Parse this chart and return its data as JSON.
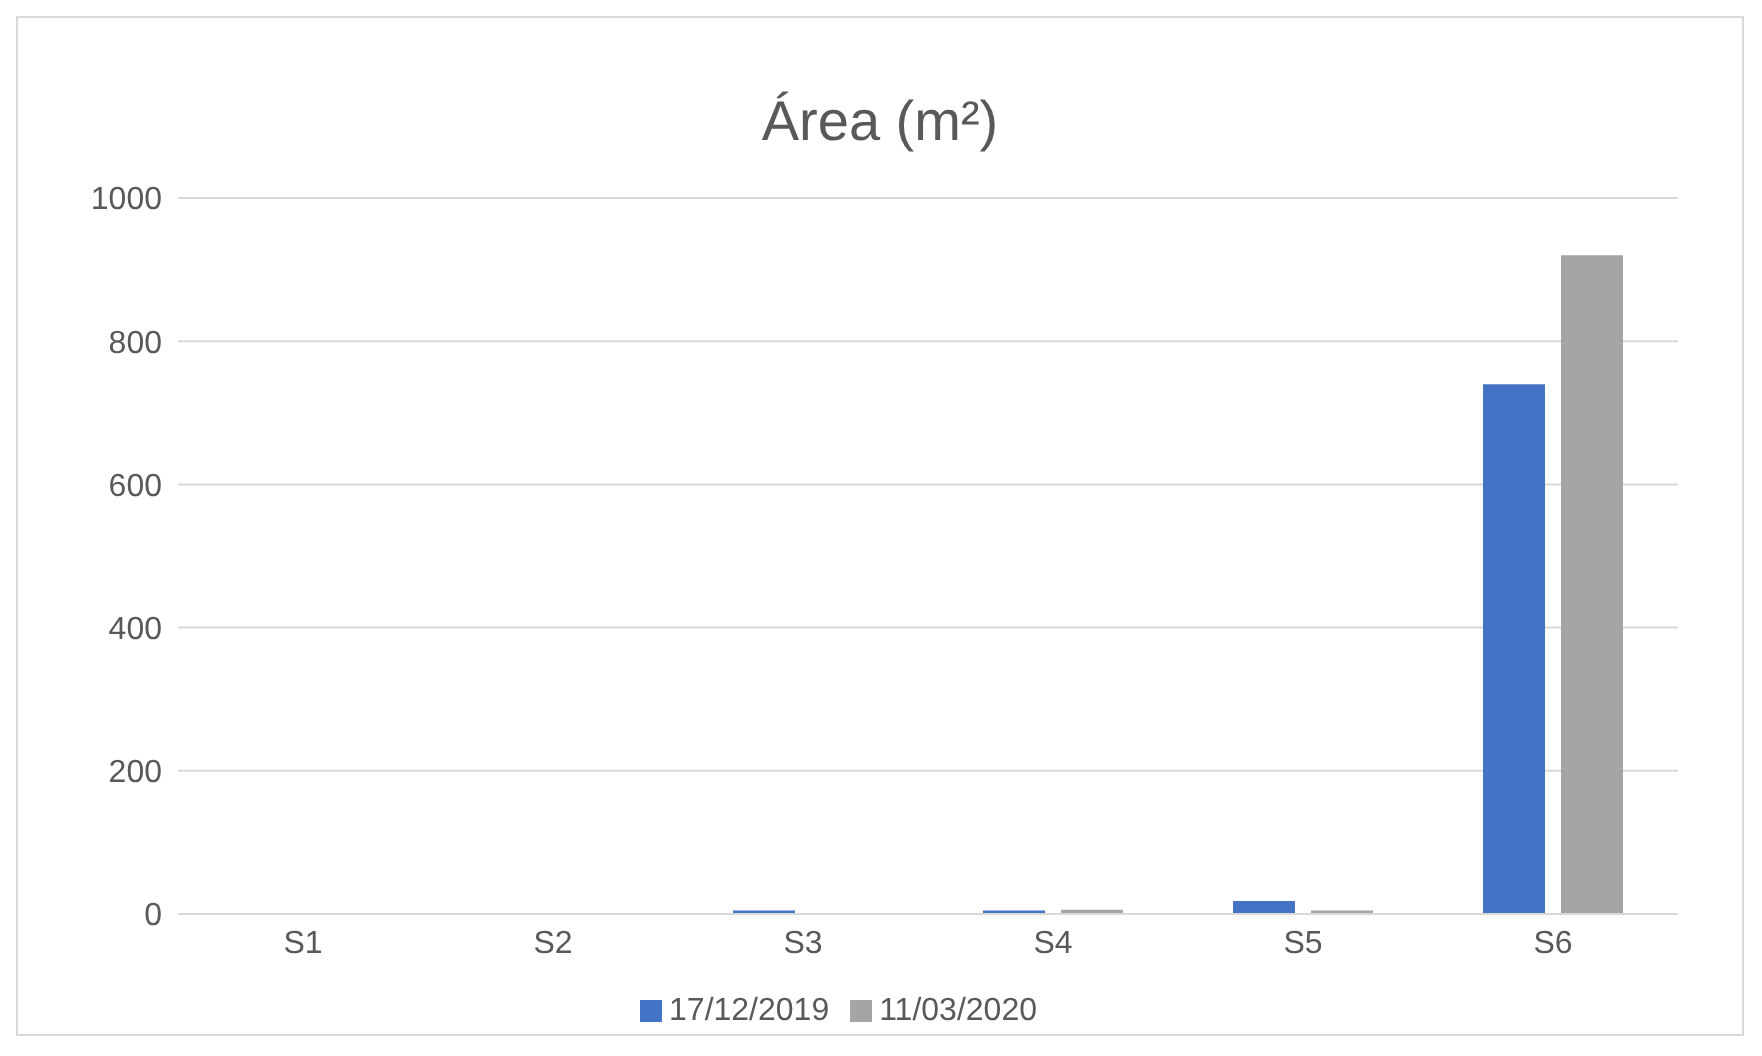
{
  "chart_data": {
    "type": "bar",
    "title": "Área (m²)",
    "categories": [
      "S1",
      "S2",
      "S3",
      "S4",
      "S5",
      "S6"
    ],
    "series": [
      {
        "name": "17/12/2019",
        "color": "#4472c4",
        "values": [
          0,
          1,
          5,
          5,
          18,
          740
        ]
      },
      {
        "name": "11/03/2020",
        "color": "#a5a5a5",
        "values": [
          0,
          1,
          1,
          6,
          5,
          920
        ]
      }
    ],
    "ylim": [
      0,
      1000
    ],
    "yticks": [
      0,
      200,
      400,
      600,
      800,
      1000
    ],
    "grid": "y",
    "legend": "bottom"
  }
}
